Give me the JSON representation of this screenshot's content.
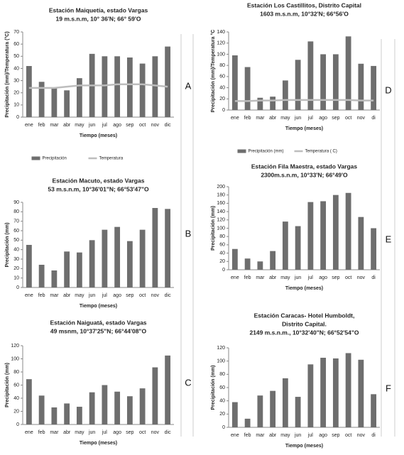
{
  "chart_data": [
    {
      "type": "bar",
      "panel": "A",
      "title": [
        "Estación Maiquetía, estado Vargas",
        "19 m.s.n.m, 10° 36'N; 66° 59'O"
      ],
      "x_label": "Tiempo (meses)",
      "y_label": "Precipitación (mm)/Temperatura (°C)",
      "categories": [
        "ene",
        "feb",
        "mar",
        "abr",
        "may",
        "jun",
        "jul",
        "ago",
        "sep",
        "oct",
        "nov",
        "dic"
      ],
      "series": [
        {
          "name": "Precipitación",
          "color": "#6e6e6e",
          "values": [
            42,
            29,
            24,
            22,
            32,
            52,
            50,
            50,
            49,
            44,
            50,
            58
          ]
        },
        {
          "name": "Temperatura",
          "color": "#bdbdbd",
          "type": "line",
          "values": [
            24,
            24,
            24,
            25,
            26,
            26,
            26,
            27,
            27,
            27,
            26,
            25
          ]
        }
      ],
      "ylim": [
        0,
        70
      ],
      "yticks": [
        0,
        10,
        20,
        30,
        40,
        50,
        60,
        70
      ]
    },
    {
      "type": "bar",
      "panel": "B",
      "title": [
        "Estación Macuto, estado Vargas",
        "53 m.s.n.m, 10°36'01\"N; 66°53'47\"O"
      ],
      "x_label": "Tiempo (meses)",
      "y_label": "Precipitación (mm)",
      "categories": [
        "ene",
        "feb",
        "mar",
        "abr",
        "may",
        "jun",
        "jul",
        "ago",
        "sep",
        "oct",
        "nov",
        "dic"
      ],
      "values": [
        45,
        24,
        18,
        38,
        37,
        50,
        61,
        64,
        49,
        61,
        84,
        83
      ],
      "color": "#6e6e6e",
      "ylim": [
        0,
        90
      ],
      "yticks": [
        0,
        10,
        20,
        30,
        40,
        50,
        60,
        70,
        80,
        90
      ]
    },
    {
      "type": "bar",
      "panel": "C",
      "title": [
        "Estación Naiguatá, estado Vargas",
        "49 msnm, 10°37'25\"N; 66°44'08\"O"
      ],
      "x_label": "Tiempo (meses)",
      "y_label": "Precipitación (mm)",
      "categories": [
        "ene",
        "feb",
        "mar",
        "abr",
        "may",
        "jun",
        "jul",
        "ago",
        "sep",
        "oct",
        "nov",
        "dic"
      ],
      "values": [
        69,
        44,
        26,
        32,
        27,
        49,
        60,
        50,
        43,
        55,
        87,
        105
      ],
      "color": "#6e6e6e",
      "ylim": [
        0,
        120
      ],
      "yticks": [
        0,
        20,
        40,
        60,
        80,
        100,
        120
      ]
    },
    {
      "type": "bar",
      "panel": "D",
      "title": [
        "Estación Los Castillitos, Distrito Capital",
        "1603 m.s.n.m, 10°32'N; 66°56'O"
      ],
      "x_label": "Tiempo (meses)",
      "y_label": "Precipitación (mm)/Temperatura °C",
      "categories": [
        "ene",
        "feb",
        "mar",
        "abr",
        "may",
        "jun",
        "jul",
        "ago",
        "sep",
        "oct",
        "nov",
        "di"
      ],
      "series": [
        {
          "name": "Precipitación (mm)",
          "color": "#6e6e6e",
          "values": [
            98,
            77,
            22,
            24,
            53,
            90,
            123,
            100,
            100,
            132,
            83,
            79
          ]
        },
        {
          "name": "Temperatura ( C)",
          "color": "#bdbdbd",
          "type": "line",
          "values": [
            16,
            16,
            17,
            17,
            18,
            18,
            18,
            18,
            18,
            18,
            17,
            17
          ]
        }
      ],
      "ylim": [
        0,
        140
      ],
      "yticks": [
        0,
        20,
        40,
        60,
        80,
        100,
        120,
        140
      ]
    },
    {
      "type": "bar",
      "panel": "E",
      "title": [
        "Estación Fila Maestra, estado Vargas",
        "2300m.s.n.m, 10°33'N; 66°49'O"
      ],
      "x_label": "Tiempo (meses)",
      "y_label": "Precipitación (mm)",
      "categories": [
        "ene",
        "feb",
        "mar",
        "abr",
        "may",
        "jun",
        "jul",
        "ago",
        "sep",
        "oct",
        "nov",
        "di"
      ],
      "values": [
        50,
        27,
        20,
        45,
        116,
        105,
        163,
        165,
        180,
        185,
        127,
        100
      ],
      "color": "#6e6e6e",
      "ylim": [
        0,
        200
      ],
      "yticks": [
        0,
        20,
        40,
        60,
        80,
        100,
        120,
        140,
        160,
        180,
        200
      ]
    },
    {
      "type": "bar",
      "panel": "F",
      "title": [
        "Estación Caracas- Hotel Humboldt,",
        "Distrito Capital.",
        "2149 m.s.n.m., 10°32'40\"N; 66°52'54\"O"
      ],
      "x_label": "Tiempo (meses)",
      "y_label": "Precipitación (mm)",
      "categories": [
        "ene",
        "feb",
        "mar",
        "abr",
        "may",
        "jun",
        "jul",
        "ago",
        "sep",
        "oct",
        "nov",
        "di"
      ],
      "values": [
        38,
        13,
        48,
        55,
        74,
        46,
        95,
        105,
        104,
        112,
        102,
        50
      ],
      "color": "#6e6e6e",
      "ylim": [
        0,
        120
      ],
      "yticks": [
        0,
        20,
        40,
        60,
        80,
        100,
        120
      ]
    }
  ]
}
